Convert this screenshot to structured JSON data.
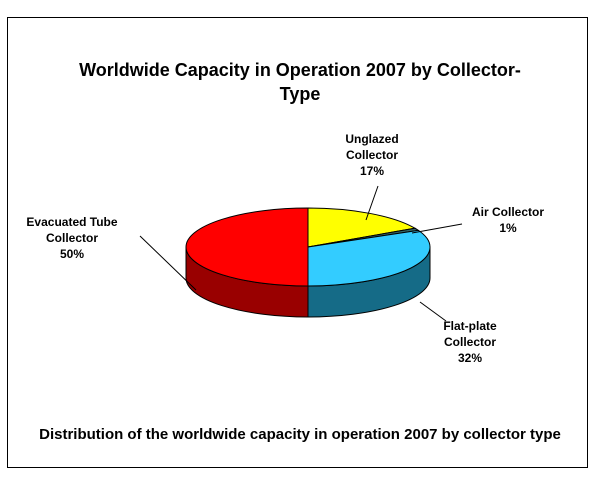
{
  "chart_data": {
    "type": "pie3d",
    "title": "Worldwide Capacity in Operation 2007 by Collector-Type",
    "caption": "Distribution of the worldwide capacity in operation 2007 by collector type",
    "categories": [
      "Unglazed Collector",
      "Air Collector",
      "Flat-plate Collector",
      "Evacuated Tube Collector"
    ],
    "values": [
      17,
      1,
      32,
      50
    ],
    "value_labels": [
      "17%",
      "1%",
      "32%",
      "50%"
    ],
    "colors": [
      "#ffff00",
      "#336666",
      "#33ccff",
      "#ff0000"
    ],
    "side_colors": [
      "#999900",
      "#1a3333",
      "#156b87",
      "#990000"
    ]
  }
}
